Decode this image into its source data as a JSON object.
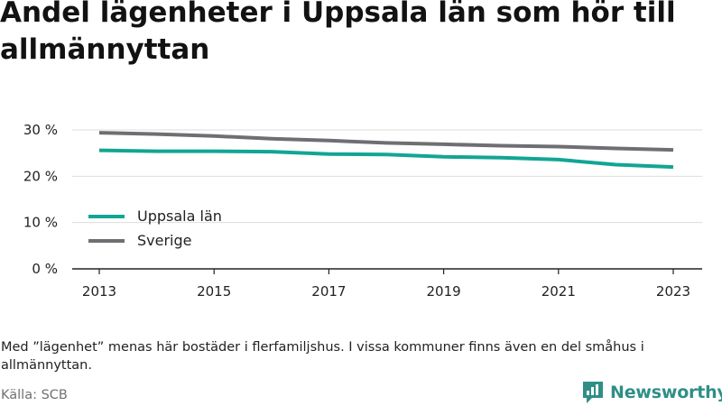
{
  "title": "Andel lägenheter i Uppsala län som hör till allmännyttan",
  "note": "Med ”lägenhet” menas här bostäder i flerfamiljshus. I vissa kommuner finns även en del småhus i allmännyttan.",
  "source": "Källa: SCB",
  "brand": {
    "name": "Newsworthy",
    "logo_icon": "bar-chart-speech-bubble-icon",
    "color": "#2f8f86"
  },
  "chart_data": {
    "type": "line",
    "x": [
      2013,
      2014,
      2015,
      2016,
      2017,
      2018,
      2019,
      2020,
      2021,
      2022,
      2023
    ],
    "x_tick_labels": [
      "2013",
      "2015",
      "2017",
      "2019",
      "2021",
      "2023"
    ],
    "y_tick_labels": [
      "0 %",
      "10 %",
      "20 %",
      "30 %"
    ],
    "ylim": [
      0,
      30
    ],
    "grid": true,
    "legend_placement": "lower-left",
    "series": [
      {
        "name": "Uppsala län",
        "color": "#12a594",
        "values": [
          25.6,
          25.4,
          25.4,
          25.3,
          24.8,
          24.7,
          24.2,
          24.0,
          23.6,
          22.5,
          22.0
        ]
      },
      {
        "name": "Sverige",
        "color": "#6f6e73",
        "values": [
          29.4,
          29.1,
          28.7,
          28.1,
          27.7,
          27.2,
          26.9,
          26.6,
          26.4,
          26.0,
          25.7
        ]
      }
    ]
  }
}
